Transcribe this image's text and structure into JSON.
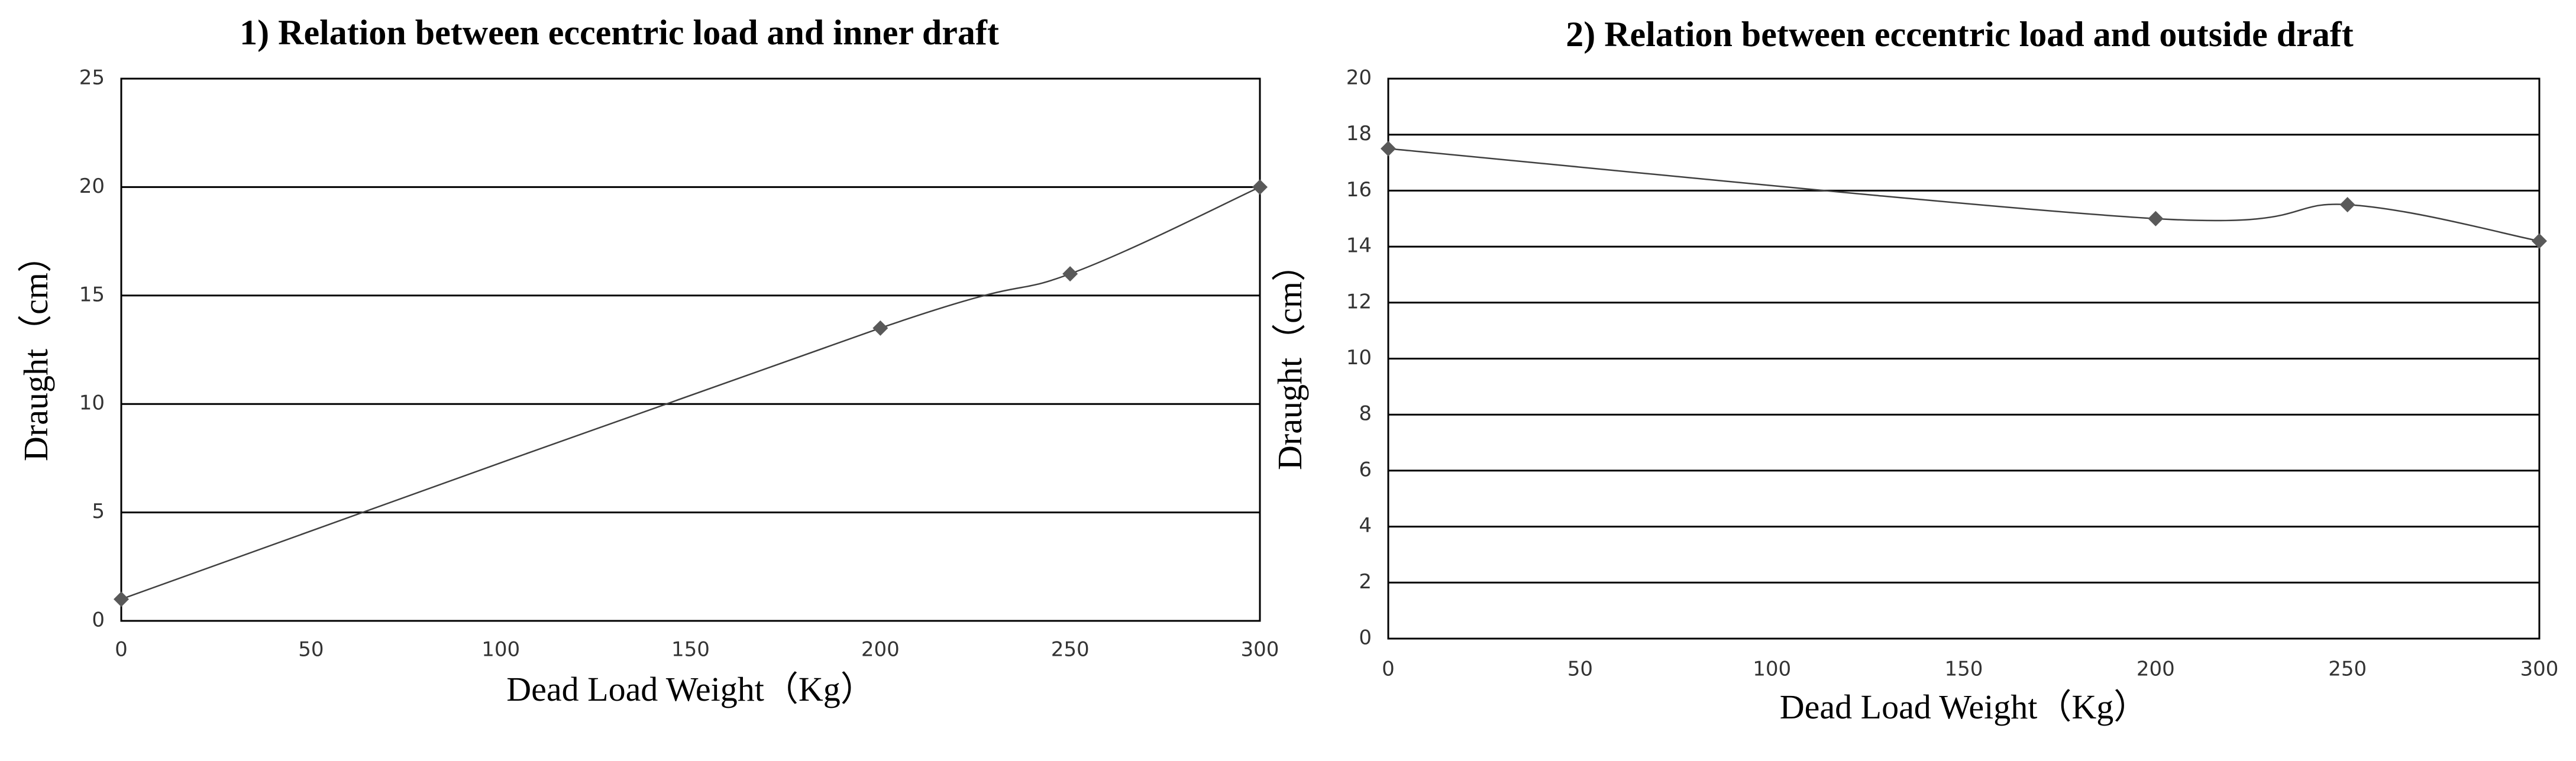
{
  "chart_data": [
    {
      "type": "scatter",
      "title": "1) Relation between eccentric load and inner draft",
      "x_label": "Dead Load Weight（Kg）",
      "y_label": "Draught（cm）",
      "x": [
        0,
        200,
        250,
        300
      ],
      "values": [
        1,
        13.5,
        16,
        20
      ],
      "color": "#595959",
      "line_color": "#404040",
      "marker": "diamond",
      "smooth": true,
      "xlim": [
        0,
        300
      ],
      "xticks": [
        0,
        50,
        100,
        150,
        200,
        250,
        300
      ],
      "ylim": [
        0,
        25
      ],
      "yticks": [
        0,
        5,
        10,
        15,
        20,
        25
      ],
      "grid": true
    },
    {
      "type": "scatter",
      "title": "2) Relation between eccentric load and outside draft",
      "x_label": "Dead Load Weight（Kg）",
      "y_label": "Draught（cm）",
      "x": [
        0,
        200,
        250,
        300
      ],
      "values": [
        17.5,
        15,
        15.5,
        14.2
      ],
      "color": "#595959",
      "line_color": "#404040",
      "marker": "diamond",
      "smooth": true,
      "xlim": [
        0,
        300
      ],
      "xticks": [
        0,
        50,
        100,
        150,
        200,
        250,
        300
      ],
      "ylim": [
        0,
        20
      ],
      "yticks": [
        0,
        2,
        4,
        6,
        8,
        10,
        12,
        14,
        16,
        18,
        20
      ],
      "grid": true
    }
  ]
}
